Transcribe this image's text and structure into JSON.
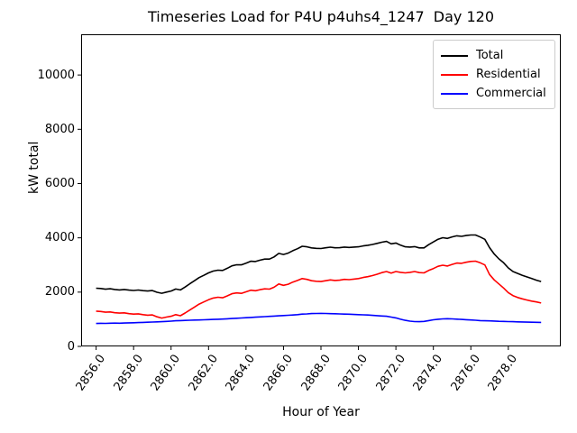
{
  "figure": {
    "title": "Timeseries Load for P4U p4uhs4_1247  Day 120",
    "background": "#ffffff"
  },
  "chart_data": {
    "type": "line",
    "title": "Timeseries Load for P4U p4uhs4_1247  Day 120",
    "xlabel": "Hour of Year",
    "ylabel": "kW total",
    "xlim": [
      2855.2,
      2880.8
    ],
    "ylim": [
      0,
      11500
    ],
    "grid": false,
    "legend_position": "upper right",
    "xticks": [
      2856,
      2858,
      2860,
      2862,
      2864,
      2866,
      2868,
      2870,
      2872,
      2874,
      2876,
      2878
    ],
    "x_tick_labels": [
      "2856.0",
      "2858.0",
      "2860.0",
      "2862.0",
      "2864.0",
      "2866.0",
      "2868.0",
      "2870.0",
      "2872.0",
      "2874.0",
      "2876.0",
      "2878.0"
    ],
    "yticks": [
      0,
      2000,
      4000,
      6000,
      8000,
      10000
    ],
    "y_tick_labels": [
      "0",
      "2000",
      "4000",
      "6000",
      "8000",
      "10000"
    ],
    "x": [
      2856.0,
      2856.25,
      2856.5,
      2856.75,
      2857.0,
      2857.25,
      2857.5,
      2857.75,
      2858.0,
      2858.25,
      2858.5,
      2858.75,
      2859.0,
      2859.25,
      2859.5,
      2859.75,
      2860.0,
      2860.25,
      2860.5,
      2860.75,
      2861.0,
      2861.25,
      2861.5,
      2861.75,
      2862.0,
      2862.25,
      2862.5,
      2862.75,
      2863.0,
      2863.25,
      2863.5,
      2863.75,
      2864.0,
      2864.25,
      2864.5,
      2864.75,
      2865.0,
      2865.25,
      2865.5,
      2865.75,
      2866.0,
      2866.25,
      2866.5,
      2866.75,
      2867.0,
      2867.25,
      2867.5,
      2867.75,
      2868.0,
      2868.25,
      2868.5,
      2868.75,
      2869.0,
      2869.25,
      2869.5,
      2869.75,
      2870.0,
      2870.25,
      2870.5,
      2870.75,
      2871.0,
      2871.25,
      2871.5,
      2871.75,
      2872.0,
      2872.25,
      2872.5,
      2872.75,
      2873.0,
      2873.25,
      2873.5,
      2873.75,
      2874.0,
      2874.25,
      2874.5,
      2874.75,
      2875.0,
      2875.25,
      2875.5,
      2875.75,
      2876.0,
      2876.25,
      2876.5,
      2876.75,
      2877.0,
      2877.25,
      2877.5,
      2877.75,
      2878.0,
      2878.25,
      2878.5,
      2878.75,
      2879.0,
      2879.25,
      2879.5,
      2879.75
    ],
    "series": [
      {
        "name": "Total",
        "color": "#000000",
        "values": [
          2145,
          2135,
          2108,
          2125,
          2098,
          2080,
          2097,
          2073,
          2062,
          2078,
          2054,
          2042,
          2058,
          1995,
          1957,
          2000,
          2040,
          2115,
          2082,
          2188,
          2305,
          2420,
          2535,
          2620,
          2708,
          2775,
          2810,
          2798,
          2878,
          2968,
          3008,
          3003,
          3068,
          3138,
          3128,
          3178,
          3218,
          3218,
          3298,
          3428,
          3388,
          3438,
          3528,
          3600,
          3690,
          3668,
          3630,
          3612,
          3605,
          3632,
          3655,
          3632,
          3635,
          3660,
          3645,
          3658,
          3670,
          3702,
          3725,
          3755,
          3795,
          3840,
          3870,
          3780,
          3810,
          3730,
          3670,
          3660,
          3675,
          3630,
          3630,
          3750,
          3850,
          3950,
          4005,
          3980,
          4035,
          4075,
          4055,
          4085,
          4105,
          4105,
          4030,
          3945,
          3640,
          3405,
          3225,
          3080,
          2890,
          2760,
          2690,
          2620,
          2560,
          2500,
          2440,
          2390
        ]
      },
      {
        "name": "Residential",
        "color": "#ff0000",
        "values": [
          1300,
          1285,
          1260,
          1270,
          1240,
          1225,
          1235,
          1205,
          1190,
          1200,
          1170,
          1150,
          1160,
          1090,
          1045,
          1080,
          1110,
          1170,
          1130,
          1230,
          1340,
          1450,
          1560,
          1640,
          1720,
          1780,
          1810,
          1790,
          1860,
          1940,
          1970,
          1955,
          2010,
          2070,
          2050,
          2090,
          2120,
          2110,
          2180,
          2300,
          2250,
          2290,
          2370,
          2430,
          2500,
          2470,
          2420,
          2400,
          2390,
          2420,
          2450,
          2430,
          2440,
          2470,
          2460,
          2480,
          2500,
          2540,
          2570,
          2610,
          2660,
          2720,
          2760,
          2700,
          2760,
          2730,
          2710,
          2730,
          2760,
          2720,
          2710,
          2800,
          2870,
          2950,
          2990,
          2960,
          3020,
          3070,
          3060,
          3100,
          3130,
          3140,
          3080,
          3000,
          2650,
          2450,
          2300,
          2150,
          1980,
          1870,
          1800,
          1750,
          1710,
          1670,
          1640,
          1600
        ]
      },
      {
        "name": "Commercial",
        "color": "#0000ff",
        "values": [
          845,
          850,
          848,
          855,
          858,
          855,
          862,
          868,
          872,
          878,
          884,
          892,
          898,
          905,
          912,
          920,
          930,
          945,
          952,
          958,
          965,
          970,
          975,
          980,
          988,
          995,
          1000,
          1008,
          1018,
          1028,
          1038,
          1048,
          1058,
          1068,
          1078,
          1088,
          1098,
          1108,
          1118,
          1128,
          1138,
          1148,
          1158,
          1170,
          1190,
          1198,
          1210,
          1212,
          1215,
          1212,
          1205,
          1202,
          1195,
          1190,
          1185,
          1178,
          1170,
          1162,
          1155,
          1145,
          1135,
          1120,
          1110,
          1080,
          1050,
          1000,
          960,
          930,
          915,
          910,
          920,
          950,
          980,
          1000,
          1015,
          1020,
          1015,
          1005,
          995,
          985,
          975,
          965,
          950,
          945,
          940,
          935,
          925,
          920,
          915,
          910,
          905,
          900,
          895,
          890,
          888,
          885
        ]
      }
    ]
  }
}
